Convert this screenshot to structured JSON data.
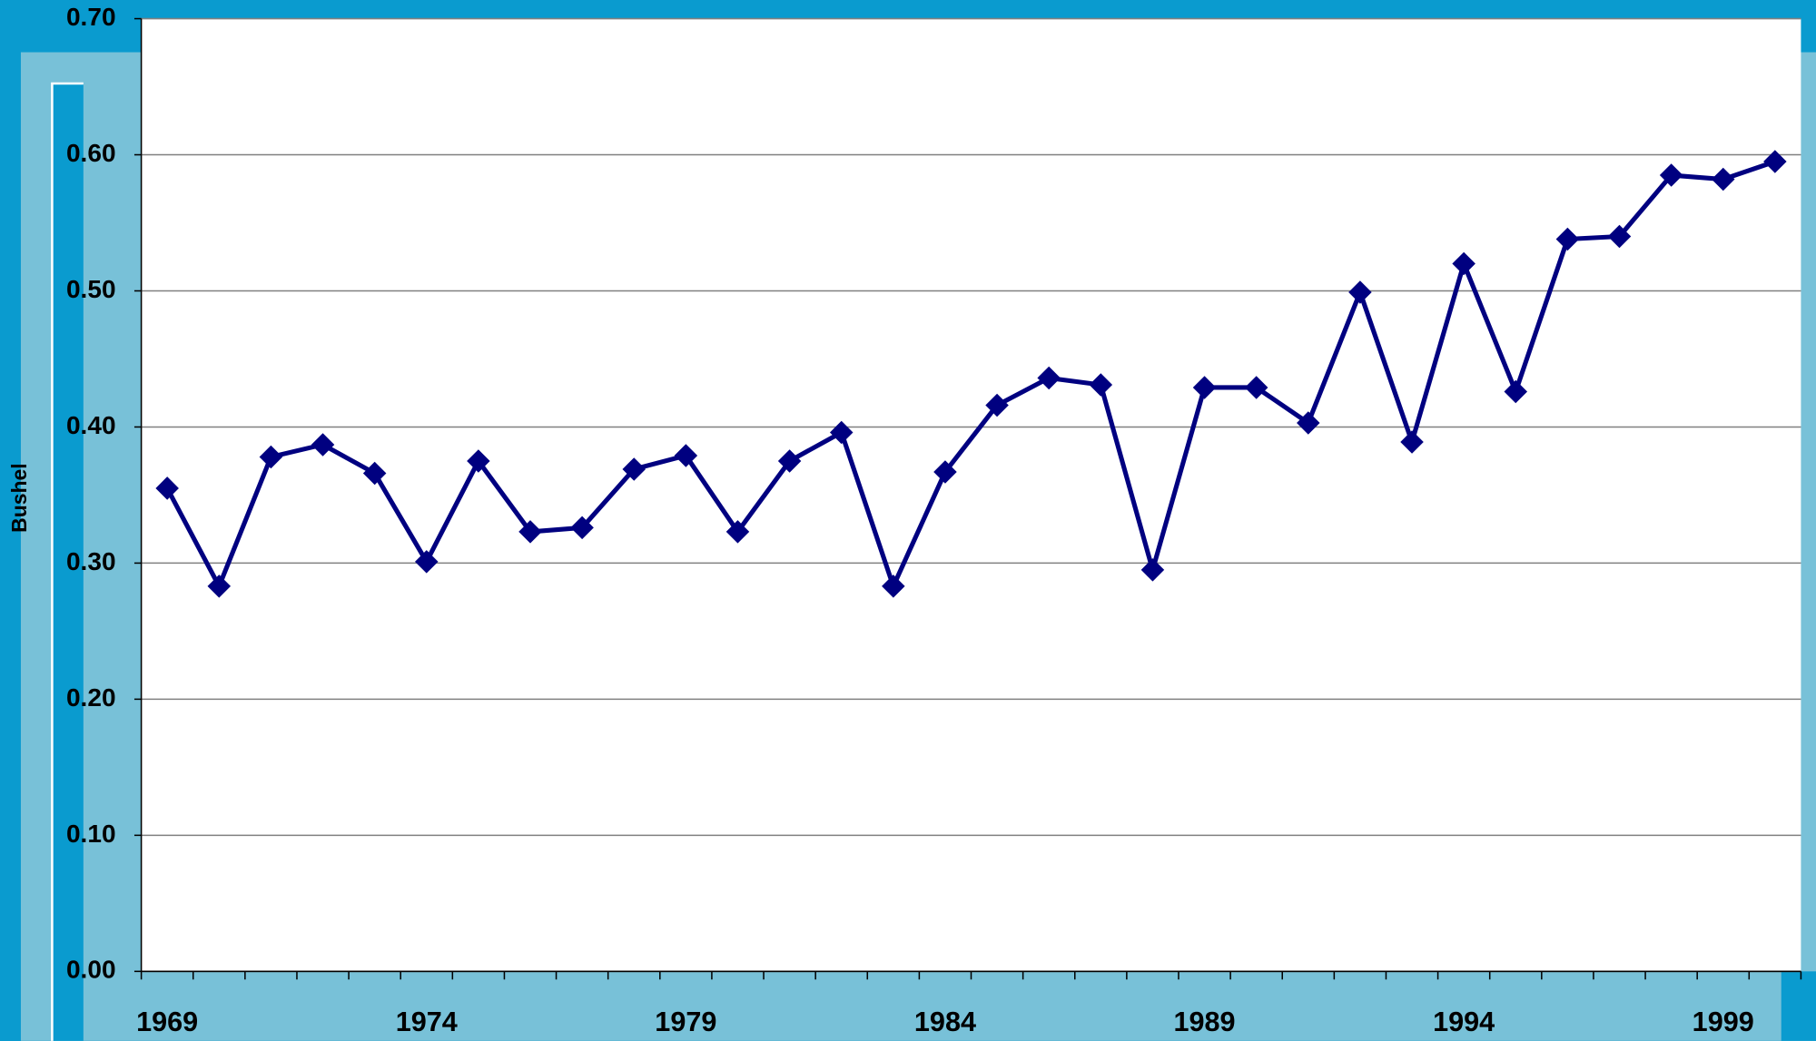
{
  "chart_data": {
    "type": "line",
    "y_label": "Bushel",
    "categories": [
      "1969",
      null,
      null,
      null,
      null,
      "1974",
      null,
      null,
      null,
      null,
      "1979",
      null,
      null,
      null,
      null,
      "1984",
      null,
      null,
      null,
      null,
      "1989",
      null,
      null,
      null,
      null,
      "1994",
      null,
      null,
      null,
      null,
      "1999",
      null
    ],
    "series": [
      {
        "color": "#000080",
        "values": [
          0.355,
          0.283,
          0.378,
          0.387,
          0.366,
          0.301,
          0.375,
          0.323,
          0.326,
          0.369,
          0.379,
          0.323,
          0.375,
          0.396,
          0.283,
          0.367,
          0.416,
          0.436,
          0.431,
          0.295,
          0.429,
          0.429,
          0.403,
          0.499,
          0.389,
          0.52,
          0.426,
          0.538,
          0.54,
          0.585,
          0.582,
          0.595
        ]
      }
    ],
    "ylim": [
      0,
      0.7
    ],
    "yticks": [
      {
        "value": 0,
        "label": "0.00"
      },
      {
        "value": 0.1,
        "label": "0.10"
      },
      {
        "value": 0.2,
        "label": "0.20"
      },
      {
        "value": 0.3,
        "label": "0.30"
      },
      {
        "value": 0.4,
        "label": "0.40"
      },
      {
        "value": 0.5,
        "label": "0.50"
      },
      {
        "value": 0.6,
        "label": "0.60"
      },
      {
        "value": 0.7,
        "label": "0.70"
      }
    ],
    "grid": true
  }
}
